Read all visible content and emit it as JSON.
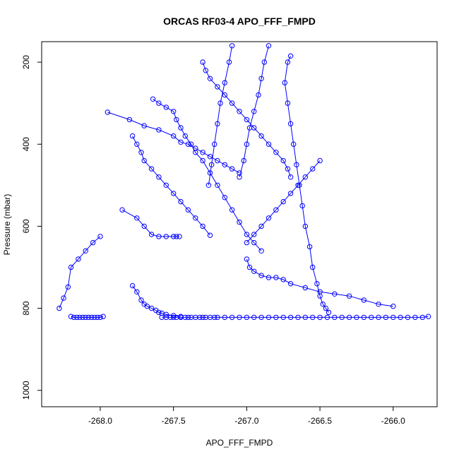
{
  "chart_data": {
    "type": "line",
    "title": "ORCAS RF03-4 APO_FFF_FMPD",
    "xlabel": "APO_FFF_FMPD",
    "ylabel": "Pressure (mbar)",
    "xlim": [
      -268.4,
      -265.7
    ],
    "ylim": [
      1040,
      150
    ],
    "y_reversed": true,
    "x_ticks": [
      "-268.0",
      "-267.5",
      "-267.0",
      "-266.5",
      "-266.0"
    ],
    "x_tick_values": [
      -268.0,
      -267.5,
      -267.0,
      -266.5,
      -266.0
    ],
    "y_ticks": [
      "200",
      "400",
      "600",
      "800",
      "1000"
    ],
    "y_tick_values": [
      200,
      400,
      600,
      800,
      1000
    ],
    "grid": false,
    "point_style": "open-circle",
    "line_color": "#0000ff",
    "series": [
      {
        "x": [
          -268.28,
          -268.25,
          -268.22,
          -268.2,
          -268.15,
          -268.1,
          -268.05,
          -268.0
        ],
        "y": [
          800,
          775,
          748,
          700,
          680,
          660,
          640,
          625
        ]
      },
      {
        "x": [
          -268.2,
          -268.18,
          -268.16,
          -268.14,
          -268.12,
          -268.1,
          -268.08,
          -268.06,
          -268.04,
          -268.02,
          -268.0,
          -267.98
        ],
        "y": [
          820,
          822,
          822,
          822,
          822,
          822,
          822,
          822,
          822,
          822,
          822,
          820
        ]
      },
      {
        "x": [
          -267.58,
          -267.55,
          -267.52,
          -267.5,
          -267.48,
          -267.45,
          -267.42,
          -267.4,
          -267.38,
          -267.35,
          -267.32,
          -267.3,
          -267.28,
          -267.25,
          -267.22,
          -267.2,
          -267.15,
          -267.1,
          -267.05,
          -267.0,
          -266.95,
          -266.9,
          -266.85,
          -266.8,
          -266.75,
          -266.7,
          -266.65,
          -266.6,
          -266.55,
          -266.5,
          -266.45,
          -266.4,
          -266.35,
          -266.3,
          -266.25,
          -266.2,
          -266.15,
          -266.1,
          -266.05,
          -266.0,
          -265.95,
          -265.9,
          -265.85,
          -265.8,
          -265.76
        ],
        "y": [
          822,
          822,
          822,
          822,
          822,
          822,
          822,
          822,
          822,
          822,
          822,
          822,
          822,
          822,
          822,
          822,
          822,
          822,
          822,
          822,
          822,
          822,
          822,
          822,
          822,
          822,
          822,
          822,
          822,
          822,
          822,
          822,
          822,
          822,
          822,
          822,
          822,
          822,
          822,
          822,
          822,
          822,
          822,
          822,
          820
        ]
      },
      {
        "x": [
          -267.95,
          -267.8,
          -267.7,
          -267.6,
          -267.5,
          -267.45,
          -267.4,
          -267.35,
          -267.3,
          -267.25,
          -267.2,
          -267.15,
          -267.1,
          -267.05
        ],
        "y": [
          322,
          340,
          355,
          365,
          380,
          395,
          400,
          410,
          420,
          430,
          440,
          450,
          460,
          470
        ]
      },
      {
        "x": [
          -267.64,
          -267.6,
          -267.55,
          -267.5,
          -267.48,
          -267.45,
          -267.42,
          -267.38,
          -267.35,
          -267.3,
          -267.25,
          -267.2,
          -267.15,
          -267.1,
          -267.05,
          -267.0,
          -266.95,
          -266.9
        ],
        "y": [
          290,
          300,
          310,
          320,
          340,
          360,
          380,
          400,
          420,
          440,
          470,
          500,
          530,
          560,
          590,
          620,
          640,
          660
        ]
      },
      {
        "x": [
          -267.3,
          -267.28,
          -267.25,
          -267.2,
          -267.15,
          -267.1,
          -267.05,
          -267.0,
          -266.95,
          -266.9,
          -266.85,
          -266.8,
          -266.75,
          -266.72,
          -266.7
        ],
        "y": [
          200,
          220,
          240,
          260,
          280,
          300,
          320,
          340,
          360,
          380,
          400,
          420,
          440,
          460,
          480
        ]
      },
      {
        "x": [
          -266.7,
          -266.72,
          -266.74,
          -266.72,
          -266.7,
          -266.68,
          -266.66,
          -266.64,
          -266.62,
          -266.6,
          -266.57,
          -266.55,
          -266.52,
          -266.5,
          -266.48,
          -266.46,
          -266.44
        ],
        "y": [
          185,
          200,
          250,
          300,
          350,
          400,
          450,
          500,
          550,
          600,
          650,
          700,
          740,
          770,
          790,
          800,
          810
        ]
      },
      {
        "x": [
          -267.25,
          -267.3,
          -267.35,
          -267.4,
          -267.45,
          -267.5,
          -267.55,
          -267.6,
          -267.65,
          -267.7,
          -267.72,
          -267.75,
          -267.78
        ],
        "y": [
          622,
          600,
          580,
          560,
          540,
          520,
          500,
          480,
          460,
          440,
          420,
          400,
          380
        ]
      },
      {
        "x": [
          -267.85,
          -267.75,
          -267.7,
          -267.65,
          -267.6,
          -267.55,
          -267.5,
          -267.48,
          -267.46
        ],
        "y": [
          560,
          580,
          600,
          620,
          625,
          625,
          625,
          625,
          625
        ]
      },
      {
        "x": [
          -267.0,
          -266.95,
          -266.9,
          -266.85,
          -266.8,
          -266.75,
          -266.7,
          -266.65,
          -266.6,
          -266.55,
          -266.5
        ],
        "y": [
          640,
          620,
          600,
          580,
          560,
          540,
          520,
          500,
          480,
          460,
          440
        ]
      },
      {
        "x": [
          -267.0,
          -266.98,
          -266.95,
          -266.9,
          -266.85,
          -266.8,
          -266.75,
          -266.7,
          -266.6,
          -266.5,
          -266.4,
          -266.3,
          -266.2,
          -266.1,
          -266.0
        ],
        "y": [
          680,
          700,
          710,
          720,
          725,
          725,
          730,
          740,
          750,
          760,
          765,
          770,
          780,
          790,
          795
        ]
      },
      {
        "x": [
          -267.78,
          -267.75,
          -267.72,
          -267.7,
          -267.68,
          -267.65,
          -267.62,
          -267.6,
          -267.58,
          -267.55,
          -267.5,
          -267.45
        ],
        "y": [
          745,
          760,
          780,
          790,
          795,
          800,
          805,
          810,
          812,
          815,
          818,
          820
        ]
      },
      {
        "x": [
          -267.1,
          -267.12,
          -267.15,
          -267.18,
          -267.2,
          -267.22,
          -267.24,
          -267.26
        ],
        "y": [
          160,
          200,
          250,
          300,
          350,
          400,
          450,
          500
        ]
      },
      {
        "x": [
          -266.85,
          -266.88,
          -266.9,
          -266.92,
          -266.95,
          -266.98,
          -267.0,
          -267.02,
          -267.05
        ],
        "y": [
          160,
          200,
          240,
          280,
          320,
          360,
          400,
          440,
          480
        ]
      }
    ]
  }
}
